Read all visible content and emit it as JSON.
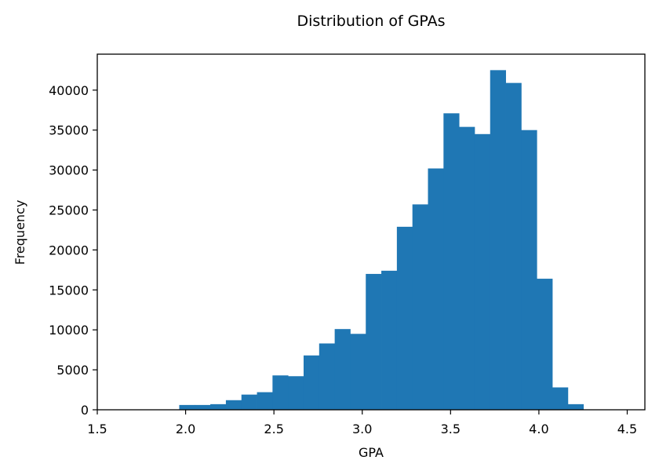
{
  "chart_data": {
    "type": "bar",
    "title": "Distribution of GPAs",
    "xlabel": "GPA",
    "ylabel": "Frequency",
    "xlim": [
      1.5,
      4.6
    ],
    "ylim": [
      0,
      44500
    ],
    "xticks": [
      1.5,
      2.0,
      2.5,
      3.0,
      3.5,
      4.0,
      4.5
    ],
    "xtick_labels": [
      "1.5",
      "2.0",
      "2.5",
      "3.0",
      "3.5",
      "4.0",
      "4.5"
    ],
    "yticks": [
      0,
      5000,
      10000,
      15000,
      20000,
      25000,
      30000,
      35000,
      40000
    ],
    "ytick_labels": [
      "0",
      "5000",
      "10000",
      "15000",
      "20000",
      "25000",
      "30000",
      "35000",
      "40000"
    ],
    "grid": false,
    "bar_color": "#1f77b4",
    "bin_edges": [
      1.7,
      1.788,
      1.876,
      1.964,
      2.052,
      2.14,
      2.228,
      2.316,
      2.404,
      2.492,
      2.58,
      2.668,
      2.756,
      2.844,
      2.932,
      3.02,
      3.108,
      3.196,
      3.284,
      3.372,
      3.46,
      3.548,
      3.636,
      3.724,
      3.812,
      3.9,
      3.988,
      4.076,
      4.164,
      4.252
    ],
    "values": [
      0,
      0,
      0,
      600,
      600,
      700,
      1200,
      1900,
      2200,
      4300,
      4200,
      6800,
      8300,
      10100,
      9500,
      17000,
      17400,
      22900,
      25700,
      30200,
      37100,
      35400,
      34500,
      42500,
      40900,
      35000,
      16400,
      2800,
      700
    ]
  }
}
